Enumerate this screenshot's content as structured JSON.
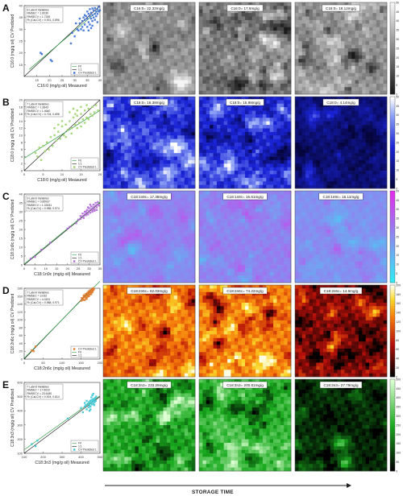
{
  "footer": {
    "storage_time_label": "STORAGE TIME"
  },
  "colors": {
    "gray": "#bdbdbd",
    "blue": "#1e2ccf",
    "magenta": "#4ee0ee",
    "red": "#c21a12",
    "green": "#29c92b"
  },
  "chart_data": [
    {
      "panel_letter": "A",
      "type": "scatter",
      "fatty_acid": "C16:0",
      "xlabel": "C16:0 (mg/g oil) Measured",
      "ylabel": "C16:0 (mg/g oil) CV Predicted",
      "xlim": [
        10,
        40
      ],
      "ylim": [
        10,
        40
      ],
      "xticks": [
        "15",
        "20",
        "25",
        "30",
        "35",
        "40"
      ],
      "yticks": [
        "15",
        "20",
        "25",
        "30",
        "35",
        "40"
      ],
      "stats": [
        "8 Latent Variables",
        "RMSEC = 1.6039",
        "RMSECV = 1.7326",
        "R² (Cal,CV) = 0.921, 0.896"
      ],
      "legend": [
        "Fit",
        "1:1",
        "CV Predicted 1"
      ],
      "marker_color": "#3c6fd6",
      "fit": [
        [
          12,
          13
        ],
        [
          40,
          38.5
        ]
      ],
      "points": [
        [
          16.5,
          20
        ],
        [
          17,
          19.5
        ],
        [
          20.5,
          17
        ],
        [
          21,
          16.5
        ],
        [
          28.5,
          24
        ],
        [
          29,
          28.5
        ],
        [
          30,
          27
        ],
        [
          31,
          30
        ],
        [
          31.5,
          29.5
        ],
        [
          32,
          32.5
        ],
        [
          32.5,
          30
        ],
        [
          33,
          33.5
        ],
        [
          33,
          31
        ],
        [
          33.5,
          29.5
        ],
        [
          34,
          34
        ],
        [
          34,
          32
        ],
        [
          34.5,
          35.5
        ],
        [
          35,
          31
        ],
        [
          35,
          34.5
        ],
        [
          35.5,
          33
        ],
        [
          35.5,
          36.5
        ],
        [
          36,
          35.5
        ],
        [
          36,
          32
        ],
        [
          36.5,
          37
        ],
        [
          36.5,
          34.5
        ],
        [
          37,
          36
        ],
        [
          37,
          33.5
        ],
        [
          37.5,
          38
        ],
        [
          37.5,
          35
        ],
        [
          38,
          36.5
        ],
        [
          38,
          39
        ],
        [
          38.5,
          37.5
        ],
        [
          38.5,
          35.5
        ],
        [
          39,
          38.5
        ],
        [
          39,
          36.5
        ],
        [
          39.5,
          39.5
        ],
        [
          39.5,
          37.5
        ],
        [
          36,
          38.5
        ],
        [
          37,
          38.8
        ],
        [
          35,
          37.5
        ],
        [
          34,
          36
        ],
        [
          33.5,
          35
        ],
        [
          32,
          34.5
        ],
        [
          30.5,
          32.5
        ],
        [
          38,
          34
        ],
        [
          37,
          31.5
        ],
        [
          36.5,
          30.5
        ],
        [
          39,
          33
        ],
        [
          35.5,
          29.5
        ],
        [
          40,
          38
        ]
      ],
      "colorbar": {
        "min": 0,
        "max": 50,
        "ticks": [
          "0",
          "5",
          "10",
          "15",
          "20",
          "25",
          "30",
          "35",
          "40",
          "45",
          "50"
        ]
      },
      "maps": [
        {
          "label": "C16:0= 22.32mg/g",
          "lightness": 0.55,
          "contrast": 1.0
        },
        {
          "label": "C16:0= 17.6mg/g",
          "lightness": 0.45,
          "contrast": 1.0
        },
        {
          "label": "C16:0= 18.12mg/g",
          "lightness": 0.42,
          "contrast": 0.95
        }
      ]
    },
    {
      "panel_letter": "B",
      "type": "scatter",
      "fatty_acid": "C18:0",
      "xlabel": "C18:0 (mg/g oil) Measured",
      "ylabel": "C18:0 (mg/g oil) CV Predicted",
      "xlim": [
        0,
        20
      ],
      "ylim": [
        0,
        20
      ],
      "xticks": [
        "0",
        "5",
        "10",
        "15",
        "20"
      ],
      "yticks": [
        "0",
        "2",
        "4",
        "6",
        "8",
        "10",
        "12",
        "14",
        "16",
        "18",
        "20"
      ],
      "stats": [
        "7 Latent Variables",
        "RMSEC = 1.3843",
        "RMSECV = 1.4640",
        "R² (Cal,CV) = 0.724, 0.698"
      ],
      "legend": [
        "Fit",
        "1:1",
        "CV Predicted 1"
      ],
      "marker_color": "#9fd46a",
      "fit": [
        [
          0,
          3.5
        ],
        [
          20,
          17
        ]
      ],
      "points": [
        [
          3,
          5
        ],
        [
          3.5,
          4
        ],
        [
          4,
          6.5
        ],
        [
          4.5,
          3
        ],
        [
          5,
          7
        ],
        [
          5.5,
          5.5
        ],
        [
          6,
          8
        ],
        [
          6.5,
          6
        ],
        [
          7,
          9.5
        ],
        [
          7.5,
          7
        ],
        [
          8,
          10
        ],
        [
          8.5,
          8.5
        ],
        [
          9,
          11
        ],
        [
          9.5,
          9
        ],
        [
          10,
          12.5
        ],
        [
          10.5,
          10
        ],
        [
          11,
          13
        ],
        [
          11.5,
          11.5
        ],
        [
          12,
          14
        ],
        [
          12.5,
          12
        ],
        [
          13,
          15
        ],
        [
          13.5,
          13
        ],
        [
          14,
          15.5
        ],
        [
          14.5,
          13.5
        ],
        [
          15,
          16
        ],
        [
          15.5,
          14.5
        ],
        [
          16,
          17
        ],
        [
          16.5,
          15
        ],
        [
          17,
          17.5
        ],
        [
          17.5,
          16
        ],
        [
          18,
          18
        ],
        [
          18.5,
          16.5
        ],
        [
          19,
          18.5
        ],
        [
          19.5,
          17
        ],
        [
          12,
          16.5
        ],
        [
          13,
          17.5
        ],
        [
          14,
          12
        ],
        [
          15,
          12.5
        ],
        [
          16,
          13.5
        ],
        [
          11,
          9.5
        ],
        [
          10,
          14
        ],
        [
          9,
          13
        ],
        [
          8,
          12
        ],
        [
          14,
          17
        ],
        [
          15,
          18
        ],
        [
          16.5,
          18.5
        ],
        [
          13.5,
          16
        ],
        [
          12.5,
          10.5
        ],
        [
          17,
          14.5
        ],
        [
          18,
          15.5
        ]
      ],
      "colorbar": {
        "min": 0,
        "max": 50,
        "ticks": [
          "0",
          "5",
          "10",
          "15",
          "20",
          "25",
          "30",
          "35",
          "40",
          "45",
          "50"
        ]
      },
      "maps": [
        {
          "label": "C18:0= 16.38mg/g",
          "lightness": 0.5,
          "contrast": 1.0
        },
        {
          "label": "C18:0= 15.98mg/g",
          "lightness": 0.52,
          "contrast": 1.0
        },
        {
          "label": "C18:0= 4.14mg/g",
          "lightness": 0.22,
          "contrast": 0.7
        }
      ]
    },
    {
      "panel_letter": "C",
      "type": "scatter",
      "fatty_acid": "C18:1n9c",
      "xlabel": "C18:1n9c (mg/g oil) Measured",
      "ylabel": "C18:1n9c (mg/g oil) CV Predicted",
      "xlim": [
        0,
        35
      ],
      "ylim": [
        0,
        40
      ],
      "xticks": [
        "0",
        "5",
        "10",
        "15",
        "20",
        "25",
        "30",
        "35"
      ],
      "yticks": [
        "0",
        "5",
        "10",
        "15",
        "20",
        "25",
        "30",
        "35",
        "40"
      ],
      "stats": [
        "9 Latent Variables",
        "RMSEC = 0.85937",
        "RMSECV = 1.03331",
        "R² (Cal,CV) = 0.988, 0.974"
      ],
      "legend": [
        "Fit",
        "1:1",
        "CV Predicted 1"
      ],
      "marker_color": "#b36bd6",
      "fit": [
        [
          0,
          0.5
        ],
        [
          35,
          35.5
        ]
      ],
      "points": [
        [
          3,
          3.5
        ],
        [
          5,
          4.5
        ],
        [
          8,
          8.5
        ],
        [
          12,
          12.5
        ],
        [
          20,
          20.5
        ],
        [
          21,
          21.5
        ],
        [
          24,
          23.5
        ],
        [
          25,
          25.5
        ],
        [
          26,
          26
        ],
        [
          27,
          27.5
        ],
        [
          27.5,
          26.5
        ],
        [
          28,
          28.5
        ],
        [
          28.5,
          28
        ],
        [
          29,
          29.5
        ],
        [
          29.5,
          28.5
        ],
        [
          30,
          30.5
        ],
        [
          30.5,
          29.5
        ],
        [
          31,
          31.5
        ],
        [
          31.5,
          31
        ],
        [
          32,
          32.5
        ],
        [
          32.5,
          31.5
        ],
        [
          33,
          33.5
        ],
        [
          33.5,
          32.5
        ],
        [
          34,
          34
        ],
        [
          34.5,
          33.5
        ],
        [
          30,
          32
        ],
        [
          31,
          33
        ],
        [
          32,
          34
        ],
        [
          33,
          35
        ],
        [
          29,
          31
        ],
        [
          28,
          30
        ],
        [
          27,
          29
        ],
        [
          26,
          27.5
        ],
        [
          31.5,
          30
        ],
        [
          32.5,
          30.5
        ],
        [
          33.5,
          31
        ],
        [
          34,
          35.5
        ],
        [
          30.5,
          34
        ],
        [
          29.5,
          32.5
        ],
        [
          28.5,
          30
        ]
      ],
      "colorbar": {
        "min": 0,
        "max": 50,
        "ticks": [
          "0",
          "5",
          "10",
          "15",
          "20",
          "25",
          "30",
          "35",
          "40",
          "45",
          "50"
        ]
      },
      "maps": [
        {
          "label": "C18:1n9c= 17.38mg/g",
          "lightness": 0.5,
          "contrast": 0.45
        },
        {
          "label": "C18:1n9c= 15.61mg/g",
          "lightness": 0.52,
          "contrast": 0.45
        },
        {
          "label": "C18:1n9c= 16.11mg/g",
          "lightness": 0.5,
          "contrast": 0.45
        }
      ]
    },
    {
      "panel_letter": "D",
      "type": "scatter",
      "fatty_acid": "C18:2n6c",
      "xlabel": "C18:2n6c (mg/g oil) Measured",
      "ylabel": "C18:2n6c (mg/g oil) CV Predicted",
      "xlim": [
        0,
        200
      ],
      "ylim": [
        0,
        180
      ],
      "xticks": [
        "0",
        "50",
        "100",
        "150",
        "200"
      ],
      "yticks": [
        "0",
        "20",
        "40",
        "60",
        "80",
        "100",
        "120",
        "140",
        "160",
        "180"
      ],
      "stats": [
        "7 Latent Variables",
        "RMSEC = 3.032",
        "RMSECV = 4.4151",
        "R² (Cal,CV) = 0.988, 0.971"
      ],
      "legend": [
        "CV Predicted 1",
        "Fit",
        "1:1"
      ],
      "marker_color": "#e07a2a",
      "fit": [
        [
          0,
          2
        ],
        [
          200,
          198
        ]
      ],
      "points": [
        [
          20,
          22
        ],
        [
          25,
          20
        ],
        [
          30,
          32
        ],
        [
          150,
          148
        ],
        [
          152,
          155
        ],
        [
          155,
          150
        ],
        [
          157,
          160
        ],
        [
          160,
          158
        ],
        [
          162,
          165
        ],
        [
          164,
          160
        ],
        [
          166,
          168
        ],
        [
          168,
          163
        ],
        [
          170,
          172
        ],
        [
          170,
          166
        ],
        [
          172,
          170
        ],
        [
          174,
          175
        ],
        [
          175,
          168
        ],
        [
          176,
          172
        ],
        [
          178,
          176
        ],
        [
          179,
          170
        ],
        [
          180,
          178
        ],
        [
          181,
          174
        ],
        [
          182,
          180
        ],
        [
          183,
          176
        ],
        [
          184,
          178
        ],
        [
          160,
          150
        ],
        [
          163,
          155
        ],
        [
          165,
          153
        ],
        [
          167,
          158
        ],
        [
          169,
          162
        ],
        [
          171,
          160
        ],
        [
          173,
          164
        ],
        [
          158,
          162
        ],
        [
          156,
          155
        ],
        [
          177,
          165
        ],
        [
          180,
          170
        ]
      ],
      "colorbar": {
        "min": 0,
        "max": 200,
        "ticks": [
          "0",
          "20",
          "40",
          "60",
          "80",
          "100",
          "120",
          "140",
          "160",
          "180",
          "200"
        ]
      },
      "maps": [
        {
          "label": "C18:2n6c= 62.03mg/g",
          "lightness": 0.55,
          "contrast": 1.0
        },
        {
          "label": "C18:2n6c= 74.22mg/g",
          "lightness": 0.58,
          "contrast": 1.0
        },
        {
          "label": "C18:2n6c= 14.6mg/g",
          "lightness": 0.3,
          "contrast": 1.0
        }
      ]
    },
    {
      "panel_letter": "E",
      "type": "scatter",
      "fatty_acid": "C18:3n3",
      "xlabel": "C18:3n3 (mg/g oil) Measured",
      "ylabel": "C18:3n3 (mg/g oil) CV Predicted",
      "xlim": [
        100,
        500
      ],
      "ylim": [
        100,
        600
      ],
      "xticks": [
        "100",
        "200",
        "300",
        "400",
        "500"
      ],
      "yticks": [
        "100",
        "200",
        "300",
        "400",
        "500",
        "600"
      ],
      "stats": [
        "7 Latent Variables",
        "RMSEC = 17.6022",
        "RMSECV = 23.6180",
        "R² (Cal,CV) = 0.924, 0.814"
      ],
      "legend": [
        "Fit",
        "1:1",
        "CV Predicted 1"
      ],
      "marker_color": "#3ec8d8",
      "fit": [
        [
          100,
          125
        ],
        [
          500,
          505
        ]
      ],
      "points": [
        [
          140,
          165
        ],
        [
          160,
          150
        ],
        [
          170,
          190
        ],
        [
          330,
          345
        ],
        [
          400,
          420
        ],
        [
          410,
          390
        ],
        [
          420,
          430
        ],
        [
          425,
          440
        ],
        [
          430,
          410
        ],
        [
          435,
          450
        ],
        [
          440,
          425
        ],
        [
          442,
          460
        ],
        [
          445,
          440
        ],
        [
          448,
          470
        ],
        [
          450,
          430
        ],
        [
          452,
          455
        ],
        [
          455,
          475
        ],
        [
          458,
          445
        ],
        [
          460,
          465
        ],
        [
          462,
          480
        ],
        [
          465,
          450
        ],
        [
          468,
          470
        ],
        [
          470,
          485
        ],
        [
          472,
          460
        ],
        [
          475,
          490
        ],
        [
          478,
          470
        ],
        [
          480,
          500
        ],
        [
          445,
          400
        ],
        [
          450,
          410
        ],
        [
          455,
          495
        ],
        [
          460,
          510
        ],
        [
          430,
          470
        ],
        [
          420,
          455
        ],
        [
          465,
          520
        ],
        [
          470,
          440
        ]
      ],
      "colorbar": {
        "min": 0,
        "max": 500,
        "ticks": [
          "0",
          "50",
          "100",
          "150",
          "200",
          "250",
          "300",
          "350",
          "400",
          "450",
          "500"
        ]
      },
      "maps": [
        {
          "label": "C18:3n3= 233.29mg/g",
          "lightness": 0.5,
          "contrast": 1.0
        },
        {
          "label": "C18:3n3= 200.61mg/g",
          "lightness": 0.45,
          "contrast": 1.0
        },
        {
          "label": "C18:3n3= 27.79mg/g",
          "lightness": 0.22,
          "contrast": 0.8
        }
      ]
    }
  ]
}
